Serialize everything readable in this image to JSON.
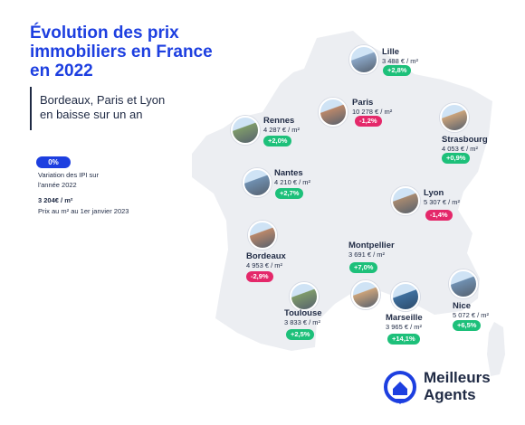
{
  "title": "Évolution des prix immobiliers en France en 2022",
  "subtitle": "Bordeaux, Paris et Lyon en baisse sur un an",
  "legend": {
    "badge": "0%",
    "variation_line1": "Variation des IPI sur",
    "variation_line2": "l'année 2022",
    "price": "3 204€ / m²",
    "price_caption": "Prix au m² au 1er janvier 2023"
  },
  "colors": {
    "title": "#1d3fe0",
    "map": "#eceef2",
    "up": "#1dc07a",
    "down": "#e4286a",
    "text": "#1f2a44"
  },
  "cities": [
    {
      "name": "Lille",
      "price": "3 488 € / m²",
      "change": "+2,8%",
      "direction": "up",
      "icon": "belfry-photo"
    },
    {
      "name": "Paris",
      "price": "10 278 € / m²",
      "change": "-1,2%",
      "direction": "down",
      "icon": "paris-street-photo"
    },
    {
      "name": "Rennes",
      "price": "4 287 € / m²",
      "change": "+2,0%",
      "direction": "up",
      "icon": "timber-houses-photo"
    },
    {
      "name": "Strasbourg",
      "price": "4 053 € / m²",
      "change": "+0,9%",
      "direction": "up",
      "icon": "canal-houses-photo"
    },
    {
      "name": "Nantes",
      "price": "4 210 € / m²",
      "change": "+2,7%",
      "direction": "up",
      "icon": "bridge-photo"
    },
    {
      "name": "Lyon",
      "price": "5 307 € / m²",
      "change": "-1,4%",
      "direction": "down",
      "icon": "basilica-photo"
    },
    {
      "name": "Montpellier",
      "price": "3 691 € / m²",
      "change": "+7,0%",
      "direction": "up",
      "icon": "arch-photo"
    },
    {
      "name": "Bordeaux",
      "price": "4 953 € / m²",
      "change": "-2,9%",
      "direction": "down",
      "icon": "river-city-photo"
    },
    {
      "name": "Toulouse",
      "price": "3 833 € / m²",
      "change": "+2,5%",
      "direction": "up",
      "icon": "brick-city-photo"
    },
    {
      "name": "Marseille",
      "price": "3 965 € / m²",
      "change": "+14,1%",
      "direction": "up",
      "icon": "harbour-photo"
    },
    {
      "name": "Nice",
      "price": "5 072 € / m²",
      "change": "+6,5%",
      "direction": "up",
      "icon": "bay-photo"
    }
  ],
  "logo": {
    "line1": "Meilleurs",
    "line2": "Agents",
    "icon": "house-pin-icon"
  }
}
